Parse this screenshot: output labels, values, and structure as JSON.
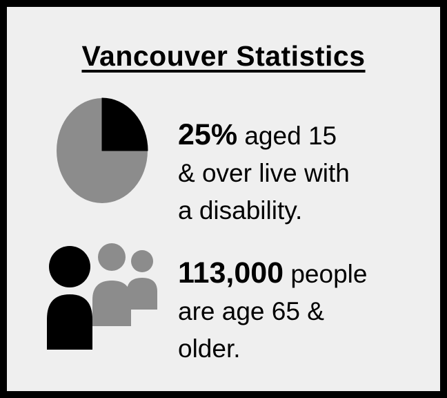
{
  "title": "Vancouver Statistics",
  "stats": [
    {
      "highlight": "25%",
      "line1_rest": " aged 15",
      "line2": "& over live with",
      "line3": "a disability.",
      "icon": "pie-chart-icon"
    },
    {
      "highlight": "113,000",
      "line1_rest": " people",
      "line2": "are age 65 &",
      "line3": "older.",
      "icon": "people-group-icon"
    }
  ],
  "pie": {
    "highlighted_percent": 25,
    "highlight_color": "#000000",
    "rest_color": "#8c8c8c"
  },
  "colors": {
    "background": "#efefef",
    "border": "#000000",
    "text": "#000000",
    "gray": "#8c8c8c"
  }
}
